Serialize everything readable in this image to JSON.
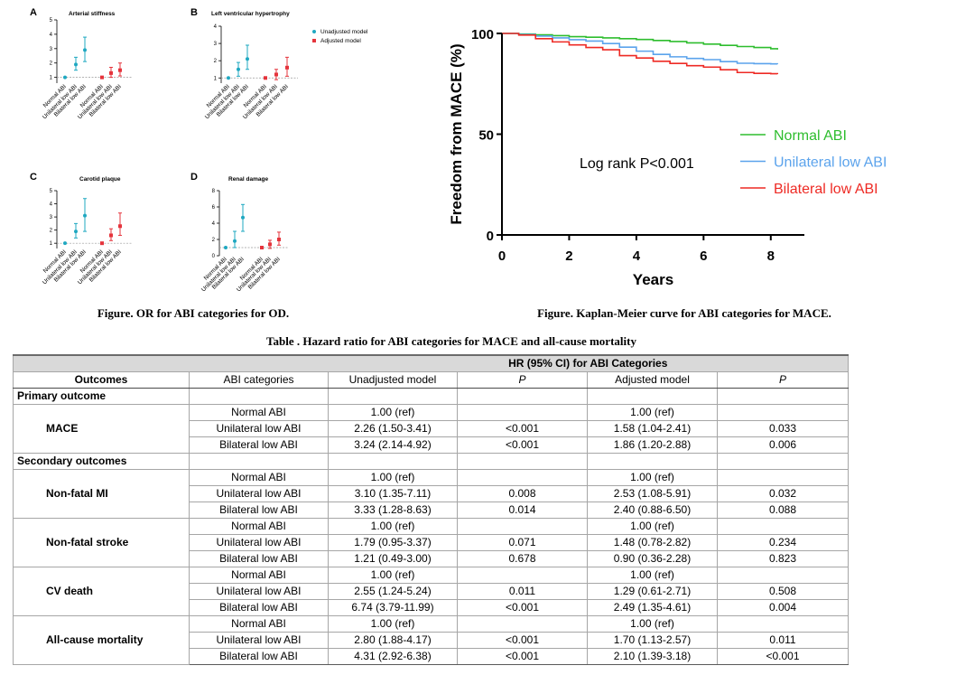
{
  "captions": {
    "left": "Figure. OR for ABI categories for OD.",
    "right": "Figure. Kaplan-Meier curve for ABI categories for MACE."
  },
  "chart_data": [
    {
      "panel": "A",
      "type": "scatter",
      "title": "Arterial stiffness",
      "categories": [
        "Normal ABI",
        "Unilateral low ABI",
        "Bilateral low ABI"
      ],
      "ylim": [
        0.6,
        5
      ],
      "yticks": [
        1,
        2,
        3,
        4,
        5
      ],
      "reference_line": 1,
      "series": [
        {
          "color": "#1fa8c1",
          "values": [
            1.0,
            1.9,
            2.9
          ],
          "ci": [
            [
              1.0,
              1.0
            ],
            [
              1.5,
              2.4
            ],
            [
              2.1,
              3.8
            ]
          ]
        },
        {
          "color": "#e5343c",
          "values": [
            1.0,
            1.3,
            1.5
          ],
          "ci": [
            [
              1.0,
              1.0
            ],
            [
              1.0,
              1.7
            ],
            [
              1.1,
              2.0
            ]
          ]
        }
      ]
    },
    {
      "panel": "B",
      "type": "scatter",
      "title": "Left ventricular hypertrophy",
      "categories": [
        "Normal ABI",
        "Unilateral low ABI",
        "Bilateral low ABI"
      ],
      "ylim": [
        0.7,
        4
      ],
      "yticks": [
        1,
        2,
        3,
        4
      ],
      "reference_line": 1,
      "legend": "top-right",
      "series": [
        {
          "name": "Unadjusted model",
          "color": "#1fa8c1",
          "values": [
            1.0,
            1.5,
            2.1
          ],
          "ci": [
            [
              1.0,
              1.0
            ],
            [
              1.1,
              1.9
            ],
            [
              1.5,
              2.9
            ]
          ]
        },
        {
          "name": "Adjusted model",
          "color": "#e5343c",
          "values": [
            1.0,
            1.2,
            1.6
          ],
          "ci": [
            [
              1.0,
              1.0
            ],
            [
              0.9,
              1.5
            ],
            [
              1.1,
              2.2
            ]
          ]
        }
      ]
    },
    {
      "panel": "C",
      "type": "scatter",
      "title": "Carotid plaque",
      "categories": [
        "Normal ABI",
        "Unilateral low ABI",
        "Bilateral low ABI"
      ],
      "ylim": [
        0.6,
        5
      ],
      "yticks": [
        1,
        2,
        3,
        4,
        5
      ],
      "reference_line": 1,
      "series": [
        {
          "color": "#1fa8c1",
          "values": [
            1.0,
            1.9,
            3.1
          ],
          "ci": [
            [
              1.0,
              1.0
            ],
            [
              1.4,
              2.5
            ],
            [
              1.9,
              4.4
            ]
          ]
        },
        {
          "color": "#e5343c",
          "values": [
            1.0,
            1.6,
            2.3
          ],
          "ci": [
            [
              1.0,
              1.0
            ],
            [
              1.2,
              2.1
            ],
            [
              1.6,
              3.3
            ]
          ]
        }
      ]
    },
    {
      "panel": "D",
      "type": "scatter",
      "title": "Renal damage",
      "categories": [
        "Normal ABI",
        "Unilateral low ABI",
        "Bilateral low ABI"
      ],
      "ylim": [
        0,
        8
      ],
      "yticks": [
        0,
        2,
        4,
        6,
        8
      ],
      "reference_line": 1,
      "series": [
        {
          "color": "#1fa8c1",
          "values": [
            1.0,
            1.8,
            4.7
          ],
          "ci": [
            [
              1.0,
              1.0
            ],
            [
              1.0,
              3.0
            ],
            [
              3.0,
              6.3
            ]
          ]
        },
        {
          "color": "#e5343c",
          "values": [
            1.0,
            1.4,
            2.0
          ],
          "ci": [
            [
              1.0,
              1.0
            ],
            [
              0.9,
              1.9
            ],
            [
              1.3,
              2.9
            ]
          ]
        }
      ]
    },
    {
      "type": "line",
      "xlabel": "Years",
      "ylabel": "Freedom from MACE (%)",
      "xlim": [
        0,
        9
      ],
      "ylim": [
        0,
        100
      ],
      "xticks": [
        0,
        2,
        4,
        6,
        8
      ],
      "yticks": [
        0,
        50,
        100
      ],
      "annotation": "Log rank P<0.001",
      "legend": "right",
      "series": [
        {
          "name": "Normal ABI",
          "color": "#2ebd2e",
          "x": [
            0,
            0.5,
            1,
            1.5,
            2,
            2.5,
            3,
            3.5,
            4,
            4.5,
            5,
            5.5,
            6,
            6.5,
            7,
            7.5,
            8,
            8.2
          ],
          "y": [
            100,
            99.7,
            99.3,
            98.9,
            98.4,
            98.1,
            97.8,
            97.4,
            97.0,
            96.5,
            96.0,
            95.3,
            94.7,
            94.1,
            93.5,
            93.0,
            92.4,
            92.0
          ]
        },
        {
          "name": "Unilateral low ABI",
          "color": "#5ba3ec",
          "x": [
            0,
            0.5,
            1,
            1.5,
            2,
            2.5,
            3,
            3.5,
            4,
            4.5,
            5,
            5.5,
            6,
            6.5,
            7,
            7.5,
            8,
            8.2
          ],
          "y": [
            100,
            99.5,
            98.7,
            97.8,
            96.9,
            96.2,
            95.0,
            93.2,
            91.2,
            89.6,
            88.4,
            87.6,
            87.0,
            86.0,
            85.2,
            85.0,
            84.9,
            84.8
          ]
        },
        {
          "name": "Bilateral low ABI",
          "color": "#ee2a24",
          "x": [
            0,
            0.5,
            1,
            1.5,
            2,
            2.5,
            3,
            3.5,
            4,
            4.5,
            5,
            5.5,
            6,
            6.5,
            7,
            7.5,
            8,
            8.2
          ],
          "y": [
            100,
            99.2,
            97.4,
            95.8,
            94.3,
            93.0,
            91.9,
            89.0,
            87.8,
            86.2,
            85.1,
            84.0,
            83.3,
            82.0,
            80.6,
            80.2,
            80.0,
            79.8
          ]
        }
      ]
    }
  ],
  "table": {
    "title": "Table . Hazard ratio for ABI categories for MACE and all-cause mortality",
    "group_header": "HR (95% CI) for ABI Categories",
    "header_bg": "#d9d9d9",
    "columns": [
      "Outcomes",
      "ABI categories",
      "Unadjusted model",
      "P",
      "Adjusted model",
      "P"
    ],
    "sections": [
      {
        "label": "Primary outcome",
        "outcomes": [
          {
            "name": "MACE",
            "rows": [
              [
                "Normal ABI",
                "1.00 (ref)",
                "",
                "1.00 (ref)",
                ""
              ],
              [
                "Unilateral low ABI",
                "2.26 (1.50-3.41)",
                "<0.001",
                "1.58 (1.04-2.41)",
                "0.033"
              ],
              [
                "Bilateral low ABI",
                "3.24 (2.14-4.92)",
                "<0.001",
                "1.86 (1.20-2.88)",
                "0.006"
              ]
            ]
          }
        ]
      },
      {
        "label": "Secondary outcomes",
        "outcomes": [
          {
            "name": "Non-fatal MI",
            "rows": [
              [
                "Normal ABI",
                "1.00 (ref)",
                "",
                "1.00 (ref)",
                ""
              ],
              [
                "Unilateral low ABI",
                "3.10 (1.35-7.11)",
                "0.008",
                "2.53 (1.08-5.91)",
                "0.032"
              ],
              [
                "Bilateral low ABI",
                "3.33 (1.28-8.63)",
                "0.014",
                "2.40 (0.88-6.50)",
                "0.088"
              ]
            ]
          },
          {
            "name": "Non-fatal stroke",
            "rows": [
              [
                "Normal ABI",
                "1.00 (ref)",
                "",
                "1.00 (ref)",
                ""
              ],
              [
                "Unilateral low ABI",
                "1.79 (0.95-3.37)",
                "0.071",
                "1.48 (0.78-2.82)",
                "0.234"
              ],
              [
                "Bilateral low ABI",
                "1.21 (0.49-3.00)",
                "0.678",
                "0.90 (0.36-2.28)",
                "0.823"
              ]
            ]
          },
          {
            "name": "CV death",
            "rows": [
              [
                "Normal ABI",
                "1.00 (ref)",
                "",
                "1.00 (ref)",
                ""
              ],
              [
                "Unilateral low ABI",
                "2.55 (1.24-5.24)",
                "0.011",
                "1.29 (0.61-2.71)",
                "0.508"
              ],
              [
                "Bilateral low ABI",
                "6.74 (3.79-11.99)",
                "<0.001",
                "2.49 (1.35-4.61)",
                "0.004"
              ]
            ]
          },
          {
            "name": "All-cause mortality",
            "rows": [
              [
                "Normal ABI",
                "1.00 (ref)",
                "",
                "1.00 (ref)",
                ""
              ],
              [
                "Unilateral low ABI",
                "2.80 (1.88-4.17)",
                "<0.001",
                "1.70 (1.13-2.57)",
                "0.011"
              ],
              [
                "Bilateral low ABI",
                "4.31 (2.92-6.38)",
                "<0.001",
                "2.10 (1.39-3.18)",
                "<0.001"
              ]
            ]
          }
        ]
      }
    ]
  }
}
